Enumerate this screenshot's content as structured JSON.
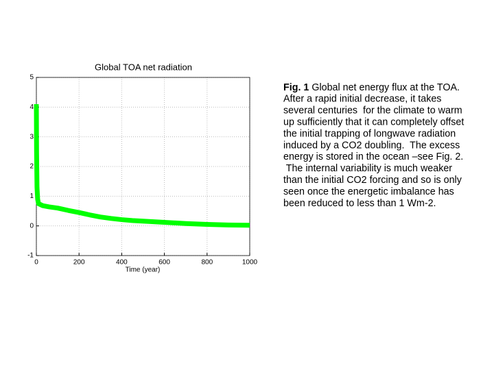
{
  "chart_data": {
    "type": "line",
    "title": "Global TOA net radiation",
    "x_label": "Time (year)",
    "x": [
      0,
      1,
      3,
      6,
      10,
      30,
      60,
      100,
      150,
      200,
      250,
      300,
      350,
      400,
      450,
      500,
      600,
      700,
      800,
      900,
      1000
    ],
    "series": [
      {
        "color": "#00ff00",
        "values": [
          4.1,
          2.5,
          1.3,
          0.9,
          0.75,
          0.68,
          0.64,
          0.6,
          0.52,
          0.45,
          0.37,
          0.3,
          0.25,
          0.21,
          0.18,
          0.16,
          0.12,
          0.08,
          0.05,
          0.03,
          0.02
        ]
      }
    ],
    "xlim": [
      0,
      1000
    ],
    "xticks": [
      0,
      200,
      400,
      600,
      800,
      1000
    ],
    "ylim": [
      -1,
      5
    ],
    "yticks": [
      -1,
      0,
      1,
      2,
      3,
      4,
      5
    ],
    "grid": true
  },
  "caption": {
    "label": "Fig. 1",
    "lines": [
      "Global net energy flux at the TOA.",
      "After a rapid initial decrease, it takes",
      "several centuries  for the climate to warm",
      "up sufficiently that it can completely offset",
      "the initial trapping of longwave radiation",
      "induced by a CO2 doubling.  The excess",
      "energy is stored in the ocean –see Fig. 2.",
      " The internal variability is much weaker",
      "than the initial CO2 forcing and so is only",
      "seen once the energetic imbalance has",
      "been reduced to less than 1 Wm-2."
    ]
  }
}
